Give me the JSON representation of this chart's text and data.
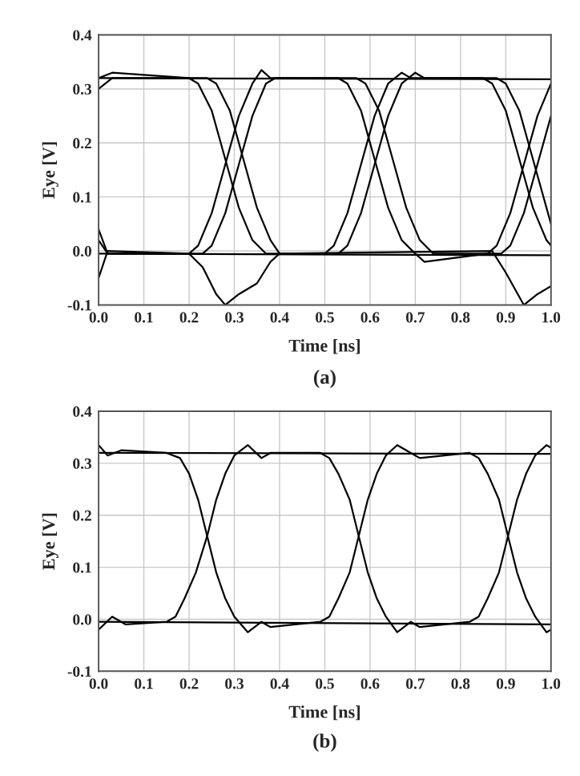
{
  "chart_data": [
    {
      "type": "line",
      "title": "(a)",
      "xlabel": "Time [ns]",
      "ylabel": "Eye [V]",
      "xlim": [
        0.0,
        1.0
      ],
      "ylim": [
        -0.1,
        0.4
      ],
      "grid": true,
      "marker": "none",
      "line_style": "solid",
      "xticks": [
        {
          "value": 0,
          "label": "0.0"
        },
        {
          "value": 0.1,
          "label": "0.1"
        },
        {
          "value": 0.2,
          "label": "0.2"
        },
        {
          "value": 0.3,
          "label": "0.3"
        },
        {
          "value": 0.4,
          "label": "0.4"
        },
        {
          "value": 0.5,
          "label": "0.5"
        },
        {
          "value": 0.6,
          "label": "0.6"
        },
        {
          "value": 0.7,
          "label": "0.7"
        },
        {
          "value": 0.8,
          "label": "0.8"
        },
        {
          "value": 0.9,
          "label": "0.9"
        },
        {
          "value": 1.0,
          "label": "1.0"
        }
      ],
      "yticks": [
        {
          "value": -0.1,
          "label": "-0.1"
        },
        {
          "value": 0,
          "label": "0.0"
        },
        {
          "value": 0.1,
          "label": "0.1"
        },
        {
          "value": 0.2,
          "label": "0.2"
        },
        {
          "value": 0.3,
          "label": "0.3"
        },
        {
          "value": 0.4,
          "label": "0.4"
        }
      ],
      "series": [
        {
          "color": "#000000",
          "x": [
            0,
            1.0
          ],
          "values": [
            0.32,
            0.318
          ]
        },
        {
          "color": "#000000",
          "x": [
            0,
            1.0
          ],
          "values": [
            -0.005,
            -0.008
          ]
        },
        {
          "color": "#000000",
          "x": [
            0,
            0.03,
            0.2,
            0.22,
            0.25,
            0.28,
            0.31,
            0.34,
            0.37,
            0.4,
            0.53,
            0.55,
            0.58,
            0.61,
            0.64,
            0.67,
            0.7,
            0.72,
            0.85,
            0.87,
            0.9,
            0.93,
            0.96,
            0.99,
            1.0
          ],
          "values": [
            0.32,
            0.33,
            0.32,
            0.31,
            0.26,
            0.17,
            0.08,
            0.02,
            -0.005,
            -0.005,
            -0.005,
            0.01,
            0.07,
            0.16,
            0.25,
            0.31,
            0.33,
            0.32,
            0.32,
            0.31,
            0.26,
            0.17,
            0.08,
            0.02,
            0.01
          ]
        },
        {
          "color": "#000000",
          "x": [
            0,
            0.03,
            0.24,
            0.26,
            0.29,
            0.32,
            0.35,
            0.38,
            0.4,
            0.5,
            0.52,
            0.55,
            0.58,
            0.61,
            0.64,
            0.67,
            0.69,
            0.88,
            0.9,
            0.93,
            0.96,
            0.99,
            1.0
          ],
          "values": [
            0.3,
            0.32,
            0.32,
            0.31,
            0.26,
            0.17,
            0.08,
            0.02,
            -0.005,
            -0.005,
            0.01,
            0.07,
            0.16,
            0.25,
            0.31,
            0.33,
            0.32,
            0.32,
            0.31,
            0.26,
            0.17,
            0.08,
            0.05
          ]
        },
        {
          "color": "#000000",
          "x": [
            0,
            0.02,
            0.2,
            0.22,
            0.25,
            0.28,
            0.31,
            0.34,
            0.36,
            0.38,
            0.53,
            0.55,
            0.58,
            0.61,
            0.64,
            0.67,
            0.7,
            0.72,
            0.86,
            0.88,
            0.91,
            0.94,
            0.97,
            1.0
          ],
          "values": [
            0.04,
            -0.005,
            -0.005,
            0.01,
            0.07,
            0.16,
            0.25,
            0.31,
            0.335,
            0.32,
            0.32,
            0.31,
            0.26,
            0.17,
            0.08,
            0.02,
            -0.005,
            -0.02,
            -0.005,
            0.01,
            0.07,
            0.16,
            0.25,
            0.31
          ]
        },
        {
          "color": "#000000",
          "x": [
            0,
            0.02,
            0.23,
            0.25,
            0.28,
            0.31,
            0.34,
            0.37,
            0.39,
            0.57,
            0.59,
            0.62,
            0.65,
            0.68,
            0.71,
            0.74,
            0.89,
            0.91,
            0.94,
            0.97,
            1.0
          ],
          "values": [
            0.02,
            -0.005,
            -0.005,
            0.01,
            0.07,
            0.16,
            0.25,
            0.31,
            0.32,
            0.32,
            0.31,
            0.26,
            0.17,
            0.08,
            0.02,
            -0.005,
            -0.005,
            0.01,
            0.07,
            0.16,
            0.25
          ]
        },
        {
          "color": "#000000",
          "x": [
            0,
            0.02,
            0.2,
            0.23,
            0.26,
            0.28,
            0.31,
            0.35,
            0.38,
            0.4,
            0.87,
            0.9,
            0.94,
            0.97,
            1.0
          ],
          "values": [
            -0.05,
            0,
            -0.005,
            -0.03,
            -0.08,
            -0.1,
            -0.08,
            -0.06,
            -0.02,
            -0.005,
            0,
            -0.04,
            -0.1,
            -0.08,
            -0.065
          ]
        }
      ]
    },
    {
      "type": "line",
      "title": "(b)",
      "xlabel": "Time [ns]",
      "ylabel": "Eye [V]",
      "xlim": [
        0.0,
        1.0
      ],
      "ylim": [
        -0.1,
        0.4
      ],
      "grid": true,
      "marker": "none",
      "line_style": "solid",
      "xticks": [
        {
          "value": 0,
          "label": "0.0"
        },
        {
          "value": 0.1,
          "label": "0.1"
        },
        {
          "value": 0.2,
          "label": "0.2"
        },
        {
          "value": 0.3,
          "label": "0.3"
        },
        {
          "value": 0.4,
          "label": "0.4"
        },
        {
          "value": 0.5,
          "label": "0.5"
        },
        {
          "value": 0.6,
          "label": "0.6"
        },
        {
          "value": 0.7,
          "label": "0.7"
        },
        {
          "value": 0.8,
          "label": "0.8"
        },
        {
          "value": 0.9,
          "label": "0.9"
        },
        {
          "value": 1.0,
          "label": "1.0"
        }
      ],
      "yticks": [
        {
          "value": -0.1,
          "label": "-0.1"
        },
        {
          "value": 0,
          "label": "0.0"
        },
        {
          "value": 0.1,
          "label": "0.1"
        },
        {
          "value": 0.2,
          "label": "0.2"
        },
        {
          "value": 0.3,
          "label": "0.3"
        },
        {
          "value": 0.4,
          "label": "0.4"
        }
      ],
      "series": [
        {
          "color": "#000000",
          "x": [
            0,
            1.0
          ],
          "values": [
            0.32,
            0.318
          ]
        },
        {
          "color": "#000000",
          "x": [
            0,
            1.0
          ],
          "values": [
            -0.005,
            -0.01
          ]
        },
        {
          "color": "#000000",
          "x": [
            0,
            0.02,
            0.05,
            0.15,
            0.18,
            0.2,
            0.22,
            0.24,
            0.26,
            0.28,
            0.3,
            0.33,
            0.36,
            0.38,
            0.49,
            0.51,
            0.53,
            0.555,
            0.575,
            0.595,
            0.615,
            0.635,
            0.66,
            0.69,
            0.71,
            0.82,
            0.84,
            0.86,
            0.885,
            0.905,
            0.925,
            0.945,
            0.965,
            0.99,
            1.0
          ],
          "values": [
            0.335,
            0.315,
            0.325,
            0.32,
            0.31,
            0.28,
            0.23,
            0.16,
            0.09,
            0.04,
            0.005,
            -0.025,
            -0.005,
            -0.015,
            -0.005,
            0.005,
            0.04,
            0.09,
            0.16,
            0.23,
            0.28,
            0.315,
            0.335,
            0.32,
            0.31,
            0.32,
            0.31,
            0.28,
            0.23,
            0.16,
            0.09,
            0.04,
            0.005,
            -0.025,
            -0.02
          ]
        },
        {
          "color": "#000000",
          "x": [
            0,
            0.03,
            0.06,
            0.15,
            0.17,
            0.19,
            0.215,
            0.24,
            0.26,
            0.28,
            0.3,
            0.33,
            0.36,
            0.38,
            0.49,
            0.51,
            0.53,
            0.555,
            0.575,
            0.595,
            0.615,
            0.635,
            0.66,
            0.69,
            0.71,
            0.82,
            0.84,
            0.86,
            0.885,
            0.905,
            0.925,
            0.945,
            0.965,
            0.99,
            1.0
          ],
          "values": [
            -0.02,
            0.005,
            -0.01,
            -0.005,
            0.005,
            0.04,
            0.09,
            0.16,
            0.23,
            0.28,
            0.315,
            0.335,
            0.31,
            0.32,
            0.32,
            0.31,
            0.28,
            0.23,
            0.16,
            0.09,
            0.04,
            0.005,
            -0.025,
            -0.005,
            -0.015,
            -0.005,
            0.005,
            0.04,
            0.09,
            0.16,
            0.23,
            0.28,
            0.315,
            0.335,
            0.33
          ]
        }
      ]
    }
  ]
}
